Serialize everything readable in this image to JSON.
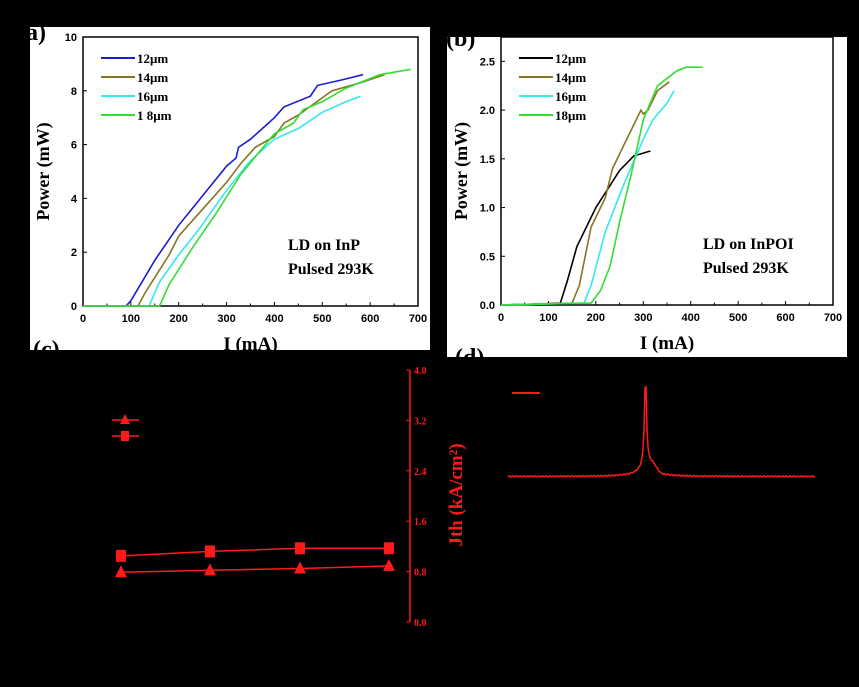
{
  "chart_data": [
    {
      "panel": "a)",
      "type": "line",
      "xlabel": "I (mA)",
      "ylabel": "Power (mW)",
      "xlim": [
        0,
        700
      ],
      "ylim": [
        0,
        10
      ],
      "xticks": [
        "0",
        "100",
        "200",
        "300",
        "400",
        "500",
        "600",
        "700"
      ],
      "yticks": [
        "0",
        "2",
        "4",
        "6",
        "8",
        "10"
      ],
      "annotation": [
        "LD on InP",
        "Pulsed 293K"
      ],
      "legend_placement": "top-left",
      "series": [
        {
          "name": "12μm",
          "color": "#1c1cd0",
          "points": [
            [
              0,
              0
            ],
            [
              90,
              0
            ],
            [
              100,
              0.2
            ],
            [
              150,
              1.7
            ],
            [
              200,
              3.0
            ],
            [
              250,
              4.1
            ],
            [
              300,
              5.2
            ],
            [
              320,
              5.5
            ],
            [
              325,
              5.9
            ],
            [
              350,
              6.2
            ],
            [
              400,
              7.0
            ],
            [
              420,
              7.4
            ],
            [
              475,
              7.8
            ],
            [
              490,
              8.2
            ],
            [
              540,
              8.4
            ],
            [
              585,
              8.6
            ]
          ]
        },
        {
          "name": "14μm",
          "color": "#857520",
          "points": [
            [
              0,
              0
            ],
            [
              115,
              0
            ],
            [
              130,
              0.5
            ],
            [
              180,
              1.9
            ],
            [
              200,
              2.6
            ],
            [
              250,
              3.6
            ],
            [
              300,
              4.6
            ],
            [
              330,
              5.3
            ],
            [
              360,
              5.9
            ],
            [
              400,
              6.3
            ],
            [
              420,
              6.8
            ],
            [
              450,
              7.1
            ],
            [
              520,
              8.0
            ],
            [
              580,
              8.3
            ],
            [
              630,
              8.6
            ]
          ]
        },
        {
          "name": "16μm",
          "color": "#33e8ee",
          "points": [
            [
              0,
              0
            ],
            [
              138,
              0
            ],
            [
              160,
              0.9
            ],
            [
              200,
              1.9
            ],
            [
              240,
              2.8
            ],
            [
              300,
              4.3
            ],
            [
              350,
              5.4
            ],
            [
              400,
              6.2
            ],
            [
              450,
              6.6
            ],
            [
              500,
              7.2
            ],
            [
              550,
              7.6
            ],
            [
              580,
              7.8
            ]
          ]
        },
        {
          "name": "1 8μm",
          "color": "#33dd33",
          "points": [
            [
              0,
              0
            ],
            [
              160,
              0
            ],
            [
              180,
              0.8
            ],
            [
              230,
              2.2
            ],
            [
              280,
              3.5
            ],
            [
              330,
              4.9
            ],
            [
              400,
              6.4
            ],
            [
              440,
              6.8
            ],
            [
              460,
              7.3
            ],
            [
              500,
              7.6
            ],
            [
              550,
              8.1
            ],
            [
              620,
              8.6
            ],
            [
              685,
              8.8
            ]
          ]
        }
      ]
    },
    {
      "panel": "(b)",
      "type": "line",
      "xlabel": "I (mA)",
      "ylabel": "Power (mW)",
      "xlim": [
        0,
        700
      ],
      "ylim": [
        0,
        2.75
      ],
      "xticks": [
        "0",
        "100",
        "200",
        "300",
        "400",
        "500",
        "600",
        "700"
      ],
      "yticks": [
        "0.0",
        "0.5",
        "1.0",
        "1.5",
        "2.0",
        "2.5"
      ],
      "annotation": [
        "LD on InPOI",
        "Pulsed 293K"
      ],
      "legend_placement": "top-left",
      "series": [
        {
          "name": "12μm",
          "color": "#000000",
          "points": [
            [
              0,
              0
            ],
            [
              80,
              0.01
            ],
            [
              125,
              0.02
            ],
            [
              140,
              0.25
            ],
            [
              160,
              0.6
            ],
            [
              200,
              1.0
            ],
            [
              220,
              1.15
            ],
            [
              250,
              1.38
            ],
            [
              280,
              1.53
            ],
            [
              315,
              1.58
            ]
          ]
        },
        {
          "name": "14μm",
          "color": "#857520",
          "points": [
            [
              0,
              0
            ],
            [
              150,
              0.02
            ],
            [
              165,
              0.2
            ],
            [
              190,
              0.8
            ],
            [
              220,
              1.1
            ],
            [
              235,
              1.4
            ],
            [
              260,
              1.65
            ],
            [
              295,
              2.0
            ],
            [
              300,
              1.96
            ],
            [
              310,
              2.0
            ],
            [
              330,
              2.2
            ],
            [
              355,
              2.29
            ]
          ]
        },
        {
          "name": "16μm",
          "color": "#33e8ee",
          "points": [
            [
              0,
              0
            ],
            [
              175,
              0.02
            ],
            [
              190,
              0.2
            ],
            [
              220,
              0.75
            ],
            [
              260,
              1.25
            ],
            [
              300,
              1.7
            ],
            [
              320,
              1.9
            ],
            [
              350,
              2.07
            ],
            [
              365,
              2.2
            ]
          ]
        },
        {
          "name": "18μm",
          "color": "#33dd33",
          "points": [
            [
              0,
              0
            ],
            [
              190,
              0.02
            ],
            [
              210,
              0.15
            ],
            [
              230,
              0.4
            ],
            [
              250,
              0.85
            ],
            [
              275,
              1.35
            ],
            [
              300,
              1.9
            ],
            [
              330,
              2.25
            ],
            [
              370,
              2.4
            ],
            [
              390,
              2.44
            ],
            [
              425,
              2.44
            ]
          ]
        }
      ]
    },
    {
      "panel": "(c)",
      "type": "line",
      "y2label": "Jth (kA/cm²)",
      "y2lim": [
        0,
        4.0
      ],
      "y2ticks": [
        "0.0",
        "0.8",
        "1.6",
        "2.4",
        "3.2",
        "4.0"
      ],
      "color": "#ff1a1a",
      "series": [
        {
          "marker": "triangle",
          "values": [
            0.79,
            0.82,
            0.85,
            0.89
          ]
        },
        {
          "marker": "square",
          "values": [
            1.05,
            1.12,
            1.17,
            1.17
          ]
        }
      ]
    },
    {
      "panel": "(d)",
      "type": "line",
      "color": "#ff1a1a",
      "description_visible": "single spectrum with sharp peak"
    }
  ]
}
